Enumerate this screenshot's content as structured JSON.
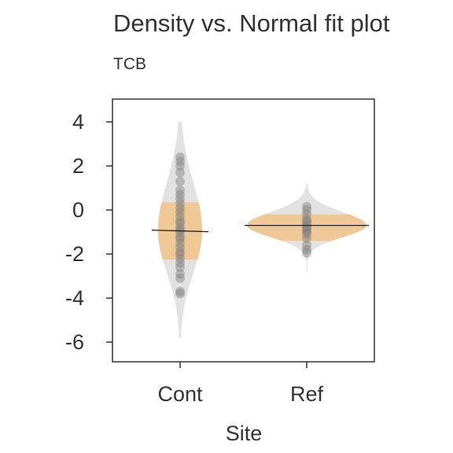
{
  "chart_data": {
    "type": "violin",
    "title": "Density vs. Normal fit plot",
    "subtitle": "TCB",
    "xlabel": "Site",
    "ylabel": "",
    "categories": [
      "Cont",
      "Ref"
    ],
    "ylim": [
      -6.8,
      5.0
    ],
    "yticks": [
      4,
      2,
      0,
      -2,
      -4,
      -6
    ],
    "ytick_labels": [
      "4",
      "2",
      "0",
      "-2",
      "-4",
      "-6"
    ],
    "grid": false,
    "legend": "none",
    "groups": [
      {
        "name": "Cont",
        "mean": -0.95,
        "normal_band": [
          -2.25,
          0.35
        ],
        "density_range": [
          -5.8,
          4.0
        ],
        "points": [
          2.4,
          2.2,
          2.0,
          1.7,
          1.3,
          0.9,
          0.7,
          0.5,
          0.3,
          0.1,
          -0.1,
          -0.3,
          -0.5,
          -0.6,
          -0.8,
          -0.9,
          -1.0,
          -1.2,
          -1.3,
          -1.5,
          -1.7,
          -1.9,
          -2.0,
          -2.2,
          -2.4,
          -2.6,
          -2.9,
          -3.1,
          -3.7,
          -3.8
        ]
      },
      {
        "name": "Ref",
        "mean": -0.7,
        "normal_band": [
          -1.4,
          -0.2
        ],
        "density_range": [
          -2.8,
          1.2
        ],
        "points": [
          0.15,
          0.0,
          -0.2,
          -0.4,
          -0.5,
          -0.6,
          -0.7,
          -0.8,
          -0.9,
          -1.0,
          -1.1,
          -1.3,
          -1.6,
          -1.8,
          -1.95
        ]
      }
    ],
    "colors": {
      "density": "#e2e2e2",
      "normal_band": "#f0c896",
      "points": "#808080",
      "mean_line": "#222222",
      "axis": "#333333",
      "text": "#333333"
    }
  }
}
